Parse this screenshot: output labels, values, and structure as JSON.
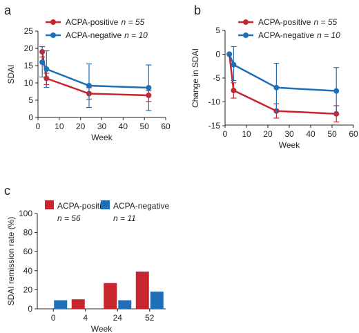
{
  "colors": {
    "positive": "#c8262e",
    "negative": "#1e6fb8",
    "axis": "#231f20"
  },
  "chart_data": [
    {
      "id": "a",
      "panel_label": "a",
      "type": "line",
      "title": "",
      "xlabel": "Week",
      "ylabel": "SDAI",
      "xlim": [
        0,
        60
      ],
      "ylim": [
        0,
        25
      ],
      "x_ticks": [
        0,
        10,
        20,
        30,
        40,
        50,
        60
      ],
      "y_ticks": [
        0,
        5,
        10,
        15,
        20,
        25
      ],
      "legend_position": "top-left",
      "series": [
        {
          "name": "ACPA-positive",
          "n_label": "n = 55",
          "color_key": "positive",
          "x": [
            2,
            4,
            24,
            52
          ],
          "y": [
            19.0,
            11.3,
            6.9,
            6.4
          ],
          "err_high": [
            20.5,
            12.8,
            8.6,
            7.7
          ],
          "err_low": [
            17.5,
            9.5,
            5.3,
            4.6
          ]
        },
        {
          "name": "ACPA-negative",
          "n_label": "n = 10",
          "color_key": "negative",
          "x": [
            2,
            4,
            24,
            52
          ],
          "y": [
            16.0,
            14.0,
            9.2,
            8.6
          ],
          "err_high": [
            20.5,
            19.3,
            15.5,
            15.2
          ],
          "err_low": [
            11.7,
            8.7,
            2.9,
            2.0
          ]
        }
      ]
    },
    {
      "id": "b",
      "panel_label": "b",
      "type": "line",
      "title": "",
      "xlabel": "Week",
      "ylabel": "Change in SDAI",
      "xlim": [
        0,
        60
      ],
      "ylim": [
        -15,
        5
      ],
      "x_ticks": [
        0,
        10,
        20,
        30,
        40,
        50,
        60
      ],
      "y_ticks": [
        -15,
        -10,
        -5,
        0,
        5
      ],
      "legend_position": "top-right",
      "series": [
        {
          "name": "ACPA-positive",
          "n_label": "n = 55",
          "color_key": "positive",
          "x": [
            2,
            4,
            24,
            52
          ],
          "y": [
            0,
            -7.6,
            -11.9,
            -12.5
          ],
          "err_high": [
            0,
            -6.0,
            -10.4,
            -10.8
          ],
          "err_low": [
            0,
            -9.2,
            -13.4,
            -14.2
          ]
        },
        {
          "name": "ACPA-negative",
          "n_label": "n = 10",
          "color_key": "negative",
          "x": [
            2,
            4,
            24,
            52
          ],
          "y": [
            0,
            -2.2,
            -7.0,
            -7.7
          ],
          "err_high": [
            0,
            1.6,
            -1.9,
            -2.8
          ],
          "err_low": [
            0,
            -5.5,
            -12.1,
            -12.6
          ]
        }
      ]
    },
    {
      "id": "c",
      "panel_label": "c",
      "type": "bar",
      "title": "",
      "xlabel": "Week",
      "ylabel": "SDAI remission rate (%)",
      "ylim": [
        0,
        100
      ],
      "y_ticks": [
        0,
        20,
        40,
        60,
        80,
        100
      ],
      "categories": [
        "0",
        "4",
        "24",
        "52"
      ],
      "legend_position": "top",
      "series": [
        {
          "name": "ACPA-positive",
          "n_label": "n = 56",
          "color_key": "positive",
          "values": [
            0,
            10,
            27,
            39
          ]
        },
        {
          "name": "ACPA-negative",
          "n_label": "n = 11",
          "color_key": "negative",
          "values": [
            9,
            0,
            9,
            18
          ]
        }
      ]
    }
  ]
}
